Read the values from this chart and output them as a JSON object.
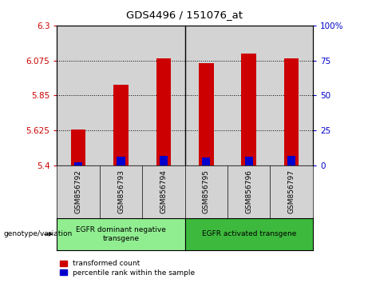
{
  "title": "GDS4496 / 151076_at",
  "samples": [
    "GSM856792",
    "GSM856793",
    "GSM856794",
    "GSM856795",
    "GSM856796",
    "GSM856797"
  ],
  "red_values": [
    5.63,
    5.92,
    6.09,
    6.06,
    6.12,
    6.09
  ],
  "blue_values": [
    5.42,
    5.455,
    5.46,
    5.45,
    5.455,
    5.46
  ],
  "red_base": 5.4,
  "blue_base": 5.4,
  "ylim_left": [
    5.4,
    6.3
  ],
  "yticks_left": [
    5.4,
    5.625,
    5.85,
    6.075,
    6.3
  ],
  "yticks_right": [
    0,
    25,
    50,
    75,
    100
  ],
  "ytick_labels_left": [
    "5.4",
    "5.625",
    "5.85",
    "6.075",
    "6.3"
  ],
  "ytick_labels_right": [
    "0",
    "25",
    "50",
    "75",
    "100%"
  ],
  "groups": [
    {
      "label": "EGFR dominant negative\ntransgene",
      "samples": [
        0,
        1,
        2
      ],
      "color": "#90ee90"
    },
    {
      "label": "EGFR activated transgene",
      "samples": [
        3,
        4,
        5
      ],
      "color": "#3dba3d"
    }
  ],
  "group_divider": 3,
  "bar_width": 0.35,
  "red_color": "#cc0000",
  "blue_color": "#0000cc",
  "legend_red": "transformed count",
  "legend_blue": "percentile rank within the sample",
  "ylabel_left_color": "#cc0000",
  "ylabel_right_color": "#0000cc",
  "bar_background": "#d3d3d3",
  "genotype_label": "genotype/variation"
}
